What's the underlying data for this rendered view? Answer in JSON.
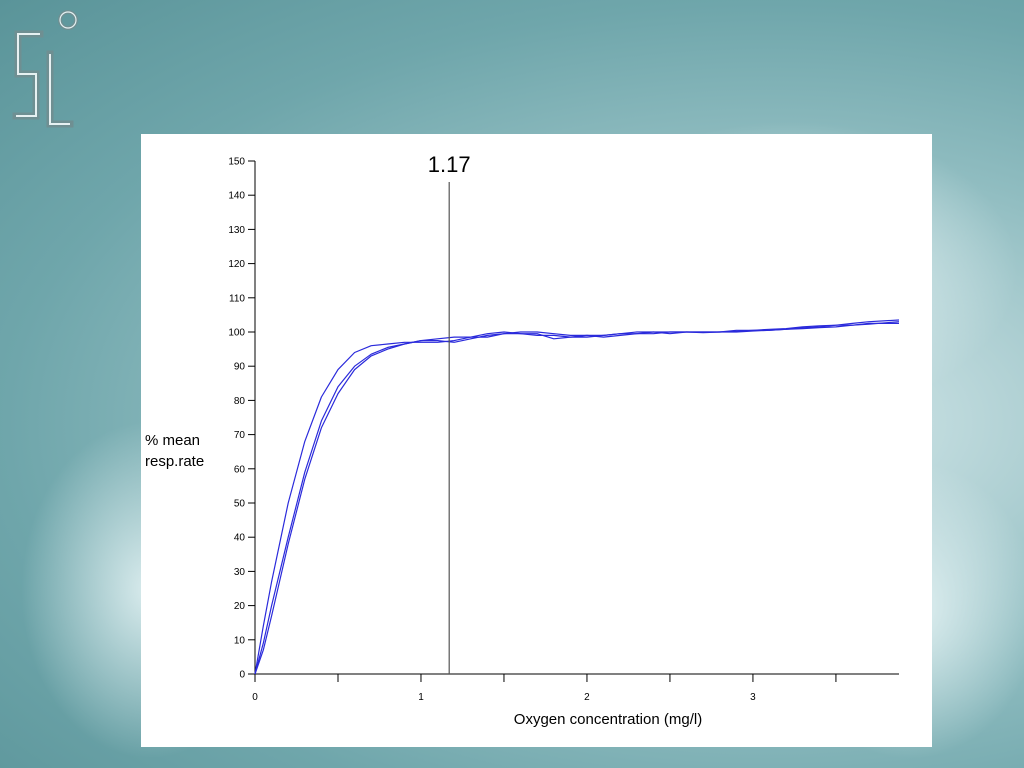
{
  "chart_data": {
    "type": "line",
    "ylabel_lines": [
      "% mean",
      "resp.rate"
    ],
    "xlabel": "Oxygen concentration (mg/l)",
    "xlim": [
      0,
      3.88
    ],
    "ylim": [
      0,
      150
    ],
    "y_ticks": [
      0,
      10,
      20,
      30,
      40,
      50,
      60,
      70,
      80,
      90,
      100,
      110,
      120,
      130,
      140,
      150
    ],
    "x_major_ticks": [
      0,
      1,
      2,
      3
    ],
    "x_minor_ticks": [
      0.5,
      1.5,
      2.5,
      3.5
    ],
    "reference_line": {
      "x": 1.17,
      "label": "1.17"
    },
    "series_color": "#2a2adb",
    "grid": false,
    "series": [
      {
        "x": [
          0,
          0.05,
          0.1,
          0.2,
          0.3,
          0.4,
          0.5,
          0.6,
          0.7,
          0.8,
          0.9,
          1.0,
          1.1,
          1.2,
          1.3,
          1.4,
          1.5,
          1.6,
          1.7,
          1.8,
          1.9,
          2.0,
          2.1,
          2.2,
          2.3,
          2.4,
          2.5,
          2.6,
          2.7,
          2.8,
          2.9,
          3.0,
          3.1,
          3.2,
          3.3,
          3.4,
          3.5,
          3.6,
          3.7,
          3.88
        ],
        "y": [
          0,
          14,
          27,
          50,
          68,
          81,
          89,
          94,
          96,
          96.5,
          97,
          97,
          97,
          97.5,
          98.5,
          99.5,
          100,
          99.5,
          99,
          99,
          98.5,
          98.5,
          99,
          99.5,
          99.5,
          99.5,
          100,
          100,
          100,
          100,
          100.2,
          100.5,
          100.5,
          100.8,
          101,
          101.3,
          101.5,
          102,
          102.3,
          103
        ]
      },
      {
        "x": [
          0,
          0.05,
          0.1,
          0.2,
          0.3,
          0.4,
          0.5,
          0.6,
          0.7,
          0.8,
          0.9,
          1.0,
          1.1,
          1.2,
          1.3,
          1.4,
          1.5,
          1.6,
          1.7,
          1.8,
          1.9,
          2.0,
          2.1,
          2.2,
          2.3,
          2.4,
          2.5,
          2.6,
          2.7,
          2.8,
          2.9,
          3.0,
          3.1,
          3.2,
          3.3,
          3.4,
          3.5,
          3.6,
          3.7,
          3.88
        ],
        "y": [
          0,
          9,
          20,
          40,
          59,
          74,
          84,
          90,
          93.5,
          95.5,
          96.5,
          97.5,
          98,
          98.5,
          98.5,
          98.5,
          99.5,
          100,
          100,
          99.5,
          99,
          99,
          99,
          99.5,
          100,
          100,
          99.5,
          100,
          100,
          100,
          100.5,
          100.5,
          100.8,
          101,
          101.5,
          101.8,
          102,
          102.5,
          103,
          103.5
        ]
      },
      {
        "x": [
          0,
          0.05,
          0.1,
          0.2,
          0.3,
          0.4,
          0.5,
          0.6,
          0.7,
          0.8,
          0.9,
          1.0,
          1.1,
          1.2,
          1.3,
          1.4,
          1.5,
          1.6,
          1.7,
          1.8,
          1.9,
          2.0,
          2.1,
          2.2,
          2.3,
          2.4,
          2.5,
          2.6,
          2.7,
          2.8,
          2.9,
          3.0,
          3.1,
          3.2,
          3.3,
          3.4,
          3.5,
          3.6,
          3.7,
          3.88
        ],
        "y": [
          0,
          7,
          17,
          38,
          57,
          72,
          82,
          89,
          93,
          95,
          96.5,
          97.5,
          97.5,
          97,
          98,
          99,
          99.5,
          99.5,
          99.5,
          98,
          98.5,
          99,
          98.5,
          99,
          99.5,
          100,
          100,
          100,
          99.8,
          100,
          100,
          100.3,
          100.5,
          100.8,
          101.2,
          101.5,
          102,
          102,
          102.5,
          102.5
        ]
      }
    ]
  }
}
